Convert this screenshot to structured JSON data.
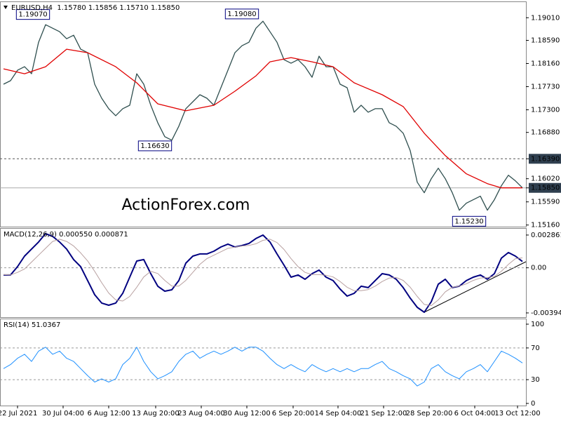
{
  "chart_data": [
    {
      "type": "line",
      "title": "EURUSD,H4  1.15780 1.15856 1.15710 1.15850",
      "xlim": [
        -0.5,
        74.5
      ],
      "ylim": [
        1.1513,
        1.193
      ],
      "yticks": [
        {
          "value": 1.1901,
          "label": "1.19010"
        },
        {
          "value": 1.1859,
          "label": "1.18590"
        },
        {
          "value": 1.1816,
          "label": "1.18160"
        },
        {
          "value": 1.1773,
          "label": "1.17730"
        },
        {
          "value": 1.173,
          "label": "1.17300"
        },
        {
          "value": 1.1688,
          "label": "1.16880"
        },
        {
          "value": 1.1639,
          "label": "1.16390"
        },
        {
          "value": 1.1602,
          "label": "1.16020"
        },
        {
          "value": 1.1585,
          "label": "1.15850"
        },
        {
          "value": 1.1559,
          "label": "1.15590"
        },
        {
          "value": 1.1516,
          "label": "1.15160"
        }
      ],
      "hlines": [
        {
          "value": 1.1639,
          "style": "dashed"
        },
        {
          "value": 1.1585,
          "style": "solid"
        }
      ],
      "series": [
        {
          "color": "#2f4f4f",
          "values": [
            1.17775,
            1.1784,
            1.18035,
            1.181,
            1.1797,
            1.18555,
            1.1888,
            1.18815,
            1.1875,
            1.1862,
            1.18685,
            1.18425,
            1.1836,
            1.17775,
            1.17515,
            1.1732,
            1.1719,
            1.1732,
            1.17385,
            1.1797,
            1.17775,
            1.17385,
            1.1706,
            1.168,
            1.16735,
            1.16995,
            1.1732,
            1.1745,
            1.1758,
            1.17515,
            1.17385,
            1.1771,
            1.18035,
            1.1836,
            1.1849,
            1.18555,
            1.18815,
            1.18945,
            1.1875,
            1.18555,
            1.1823,
            1.18165,
            1.1823,
            1.181,
            1.17905,
            1.18295,
            1.181,
            1.181,
            1.17775,
            1.1771,
            1.17255,
            1.17385,
            1.17255,
            1.1732,
            1.1732,
            1.1706,
            1.16995,
            1.16865,
            1.1654,
            1.15955,
            1.1576,
            1.1602,
            1.16215,
            1.1602,
            1.1576,
            1.15435,
            1.15565,
            1.1563,
            1.15695,
            1.15435,
            1.1563,
            1.1589,
            1.16085,
            1.1598,
            1.1585
          ]
        },
        {
          "color": "#e00000",
          "x": [
            0,
            3,
            6,
            9,
            12,
            16,
            19,
            22,
            26,
            30,
            33,
            36,
            38,
            41,
            44,
            47,
            50,
            54,
            57,
            60,
            63,
            66,
            69,
            71,
            74
          ],
          "values": [
            1.18061,
            1.1797,
            1.181,
            1.18425,
            1.1836,
            1.181,
            1.17801,
            1.17411,
            1.17281,
            1.17385,
            1.17645,
            1.17931,
            1.18191,
            1.18269,
            1.18191,
            1.181,
            1.17801,
            1.1758,
            1.17359,
            1.16865,
            1.16449,
            1.16111,
            1.15929,
            1.1585,
            1.1585
          ]
        }
      ],
      "annotations": [
        {
          "text": "1.19070",
          "value": 1.1907,
          "x": 4.2
        },
        {
          "text": "1.19080",
          "value": 1.1908,
          "x": 34
        },
        {
          "text": "1.16630",
          "value": 1.1663,
          "x": 21.6
        },
        {
          "text": "1.15230",
          "value": 1.1523,
          "x": 66.4
        }
      ],
      "watermark": "ActionForex.com"
    },
    {
      "type": "line",
      "title": "MACD(12,26,9) 0.000550 0.000871",
      "xlim": [
        -0.5,
        74.5
      ],
      "ylim": [
        -0.00431,
        0.00341
      ],
      "yticks": [
        0.002861,
        {
          "value": 0,
          "label": "0.00"
        },
        -0.00394
      ],
      "levels": [
        0
      ],
      "series": [
        {
          "color": "#000080",
          "width": 2,
          "values": [
            -0.00063,
            -0.00063,
            0.0001,
            0.00102,
            0.00164,
            0.00225,
            0.00299,
            0.00274,
            0.00225,
            0.00164,
            0.00072,
            0.0001,
            -0.00112,
            -0.00235,
            -0.00308,
            -0.00327,
            -0.00308,
            -0.00223,
            -0.00082,
            0.00059,
            0.00072,
            -0.00051,
            -0.00161,
            -0.00204,
            -0.00192,
            -0.00112,
            0.00041,
            0.00102,
            0.00121,
            0.00121,
            0.00145,
            0.00182,
            0.00207,
            0.00182,
            0.00194,
            0.00213,
            0.00256,
            0.00286,
            0.00225,
            0.00121,
            0.00023,
            -0.00082,
            -0.00063,
            -0.001,
            -0.00051,
            -0.0002,
            -0.00082,
            -0.00112,
            -0.00186,
            -0.00247,
            -0.00223,
            -0.00161,
            -0.00173,
            -0.00112,
            -0.00051,
            -0.00063,
            -0.001,
            -0.00173,
            -0.00265,
            -0.00345,
            -0.00388,
            -0.00296,
            -0.00143,
            -0.001,
            -0.00173,
            -0.00161,
            -0.00112,
            -0.00082,
            -0.00063,
            -0.001,
            -0.00051,
            0.00084,
            0.00133,
            0.00102,
            0.00055
          ]
        },
        {
          "color": "#b8a0a0",
          "width": 1,
          "values": [
            -0.0006,
            -0.00062,
            -0.0004,
            -0.0001,
            0.0005,
            0.0011,
            0.0017,
            0.0023,
            0.0025,
            0.0023,
            0.0019,
            0.0013,
            0.0006,
            -0.0003,
            -0.0013,
            -0.0022,
            -0.0028,
            -0.0029,
            -0.0025,
            -0.0017,
            -0.0008,
            -0.0003,
            -0.0005,
            -0.0011,
            -0.0016,
            -0.0016,
            -0.0011,
            -0.0004,
            0.0003,
            0.0008,
            0.0011,
            0.0014,
            0.0017,
            0.0018,
            0.0019,
            0.00195,
            0.0021,
            0.0024,
            0.0025,
            0.0022,
            0.0016,
            0.0008,
            0.0001,
            -0.0004,
            -0.0006,
            -0.0006,
            -0.00065,
            -0.0008,
            -0.0012,
            -0.0017,
            -0.002,
            -0.002,
            -0.0019,
            -0.0016,
            -0.0012,
            -0.0009,
            -0.00085,
            -0.0011,
            -0.0017,
            -0.0025,
            -0.0032,
            -0.0033,
            -0.0028,
            -0.0021,
            -0.0017,
            -0.0016,
            -0.0014,
            -0.0011,
            -0.0009,
            -0.00085,
            -0.00075,
            -0.0003,
            0.0003,
            0.0008,
            0.00087
          ]
        }
      ]
    },
    {
      "type": "line",
      "title": "RSI(14) 51.0367",
      "xlim": [
        -0.5,
        74.5
      ],
      "ylim": [
        -2.7,
        106.2
      ],
      "yticks": [
        100,
        70,
        30,
        0
      ],
      "levels": [
        70,
        30
      ],
      "xticks": [
        {
          "value": 2,
          "label": "22 Jul 2021"
        },
        {
          "value": 8.5,
          "label": "30 Jul 04:00"
        },
        {
          "value": 15,
          "label": "6 Aug 12:00"
        },
        {
          "value": 21.7,
          "label": "13 Aug 20:00"
        },
        {
          "value": 28.2,
          "label": "23 Aug 04:00"
        },
        {
          "value": 34.7,
          "label": "30 Aug 12:00"
        },
        {
          "value": 41.3,
          "label": "6 Sep 20:00"
        },
        {
          "value": 47.7,
          "label": "14 Sep 04:00"
        },
        {
          "value": 54.2,
          "label": "21 Sep 12:00"
        },
        {
          "value": 60.7,
          "label": "28 Sep 20:00"
        },
        {
          "value": 67.2,
          "label": "6 Oct 04:00"
        },
        {
          "value": 73.3,
          "label": "13 Oct 12:00"
        }
      ],
      "series": [
        {
          "color": "#1e90ff",
          "width": 1,
          "values": [
            44,
            49,
            57,
            62,
            53,
            66,
            71,
            62,
            66,
            57,
            53,
            44,
            35,
            27,
            31,
            27,
            31,
            49,
            57,
            71,
            53,
            40,
            31,
            35,
            40,
            53,
            62,
            66,
            57,
            62,
            66,
            62,
            66,
            71,
            66,
            71,
            71,
            66,
            57,
            49,
            44,
            49,
            44,
            40,
            49,
            44,
            40,
            44,
            40,
            44,
            40,
            44,
            44,
            49,
            53,
            44,
            40,
            35,
            31,
            22,
            27,
            44,
            49,
            40,
            35,
            31,
            40,
            44,
            49,
            40,
            53,
            66,
            62,
            57,
            51.0367
          ]
        }
      ]
    }
  ]
}
